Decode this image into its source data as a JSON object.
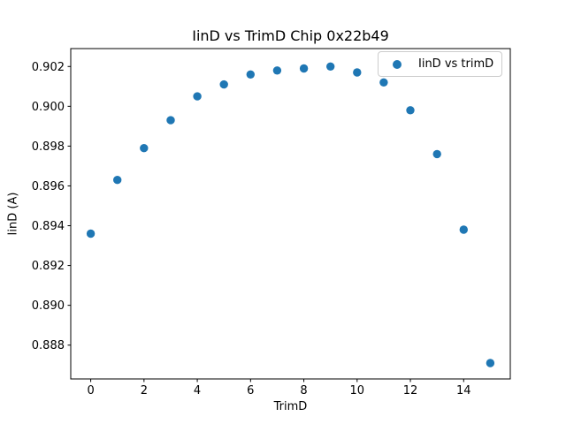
{
  "chart_data": {
    "type": "scatter",
    "title": "IinD vs TrimD Chip 0x22b49",
    "xlabel": "TrimD",
    "ylabel": "IinD (A)",
    "legend": {
      "label": "IinD vs trimD",
      "position": "upper right"
    },
    "x": [
      0,
      1,
      2,
      3,
      4,
      5,
      6,
      7,
      8,
      9,
      10,
      11,
      12,
      13,
      14,
      15
    ],
    "y": [
      0.8936,
      0.8963,
      0.8979,
      0.8993,
      0.9005,
      0.9011,
      0.9016,
      0.9018,
      0.9019,
      0.902,
      0.9017,
      0.9012,
      0.8998,
      0.8976,
      0.8938,
      0.8871
    ],
    "xlim": [
      -0.75,
      15.75
    ],
    "ylim": [
      0.8863,
      0.9029
    ],
    "xticks": [
      0,
      2,
      4,
      6,
      8,
      10,
      12,
      14
    ],
    "yticks": [
      0.888,
      0.89,
      0.892,
      0.894,
      0.896,
      0.898,
      0.9,
      0.902
    ],
    "ytick_decimals": 3,
    "marker_color": "#1f77b4",
    "axis_color": "#000000",
    "grid": false
  }
}
